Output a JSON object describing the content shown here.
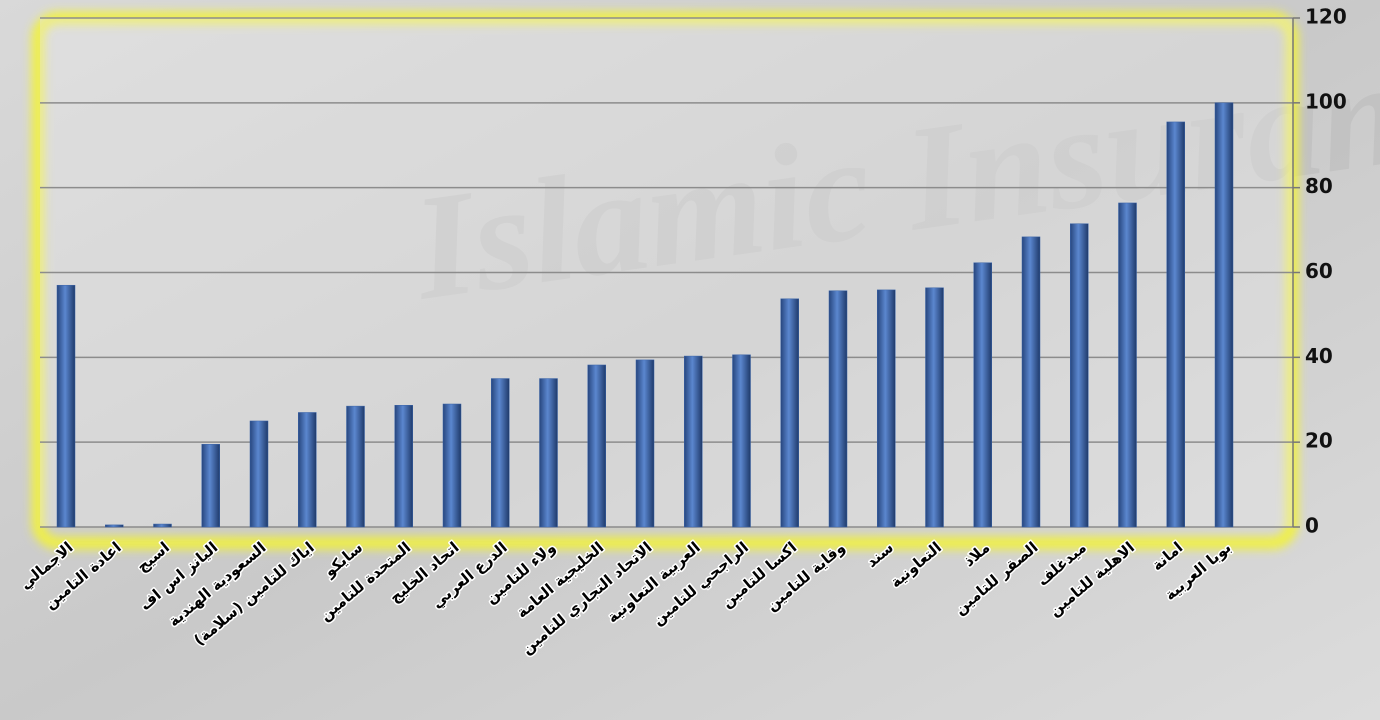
{
  "chart_data": {
    "type": "bar",
    "categories": [
      "الاجمالي",
      "اعادة التامين",
      "اسيج",
      "اليانز اس اف",
      "السعودية الهندية",
      "اياك للتامين (سلامة)",
      "سايكو",
      "المتحدة للتامين",
      "اتحاد الخليج",
      "الدرع العربي",
      "ولاء للتامين",
      "الخليجية العامة",
      "الاتحاد التجاري للتامين",
      "العربية التعاونية",
      "الراجحي للتامين",
      "اكسا للتامين",
      "وقاية للتامين",
      "سند",
      "التعاونية",
      "ملاذ",
      "الصقر للتامين",
      "ميدغلف",
      "الاهلية للتامين",
      "امانة",
      "بوبا العربية"
    ],
    "values": [
      57,
      0.5,
      0.7,
      19.5,
      25,
      27,
      28.5,
      28.7,
      29,
      35,
      35,
      38.2,
      39.4,
      40.3,
      40.6,
      53.8,
      55.7,
      55.9,
      56.4,
      62.3,
      68.4,
      71.5,
      76.4,
      95.5,
      100
    ],
    "color": "#3b64a8",
    "ylim": [
      0,
      120
    ],
    "yticks": [
      0,
      20,
      40,
      60,
      80,
      100,
      120
    ],
    "grid": true
  }
}
